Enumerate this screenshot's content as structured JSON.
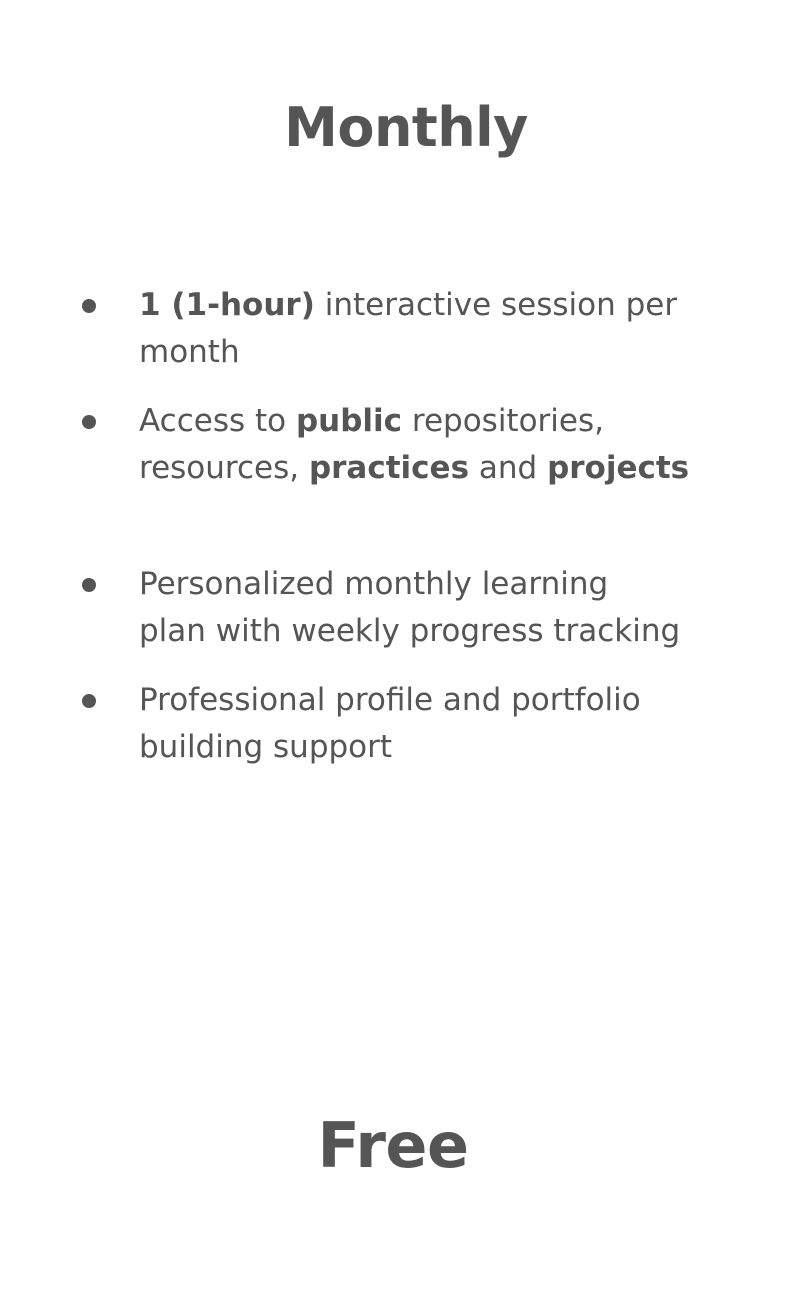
{
  "plan": {
    "title": "Monthly",
    "price": "Free"
  },
  "features": [
    {
      "line1_bold": "1 (1-hour)",
      "line1_rest": " interactive session per",
      "line2": "month"
    },
    {
      "line1_pre": "Access to ",
      "line1_bold": "public",
      "line1_post": " repositories,",
      "line2_pre": "resources, ",
      "line2_bold1": "practices",
      "line2_mid": " and ",
      "line2_bold2": "projects"
    },
    {
      "line1": "Personalized monthly learning",
      "line2": "plan with weekly progress tracking"
    },
    {
      "line1": "Professional profile and portfolio",
      "line2": "building support"
    }
  ],
  "colors": {
    "text": "#555555",
    "background": "#ffffff"
  },
  "icons": {
    "bullet": "bullet-dot-icon"
  }
}
